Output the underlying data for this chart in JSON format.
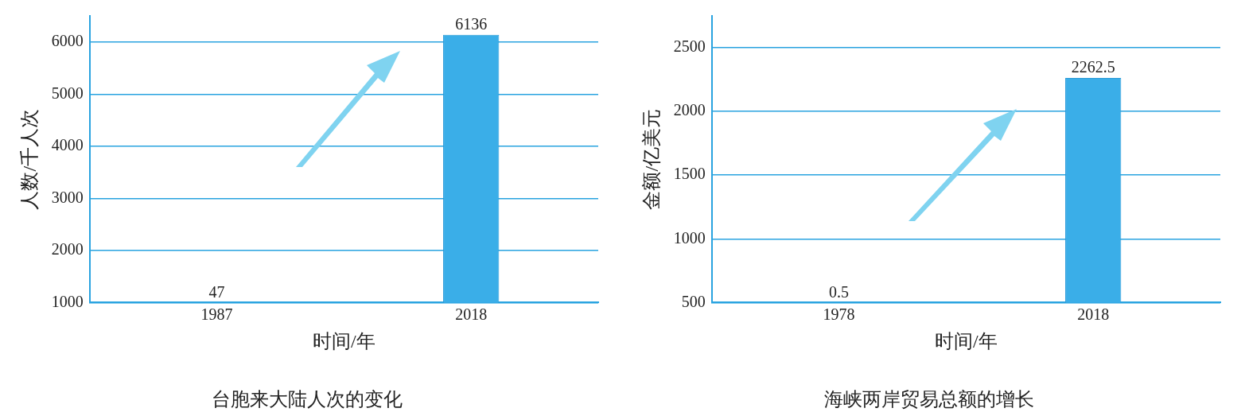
{
  "chart_data": [
    {
      "type": "bar",
      "title": "台胞来大陆人次的变化",
      "xlabel": "时间/年",
      "ylabel": "人数/千人次",
      "categories": [
        "1987",
        "2018"
      ],
      "values": [
        null,
        6136
      ],
      "value_labels": [
        "47",
        "6136"
      ],
      "color": "#3aaee8",
      "ylim": [
        1000,
        6500
      ],
      "yticks": [
        1000,
        2000,
        3000,
        4000,
        5000,
        6000
      ],
      "grid": "y"
    },
    {
      "type": "bar",
      "title": "海峡两岸贸易总额的增长",
      "xlabel": "时间/年",
      "ylabel": "金额/亿美元",
      "categories": [
        "1978",
        "2018"
      ],
      "values": [
        null,
        2262.5
      ],
      "value_labels": [
        "0.5",
        "2262.5"
      ],
      "color": "#3aaee8",
      "ylim": [
        500,
        2750
      ],
      "yticks": [
        500,
        1000,
        1500,
        2000,
        2500
      ],
      "grid": "y"
    }
  ]
}
